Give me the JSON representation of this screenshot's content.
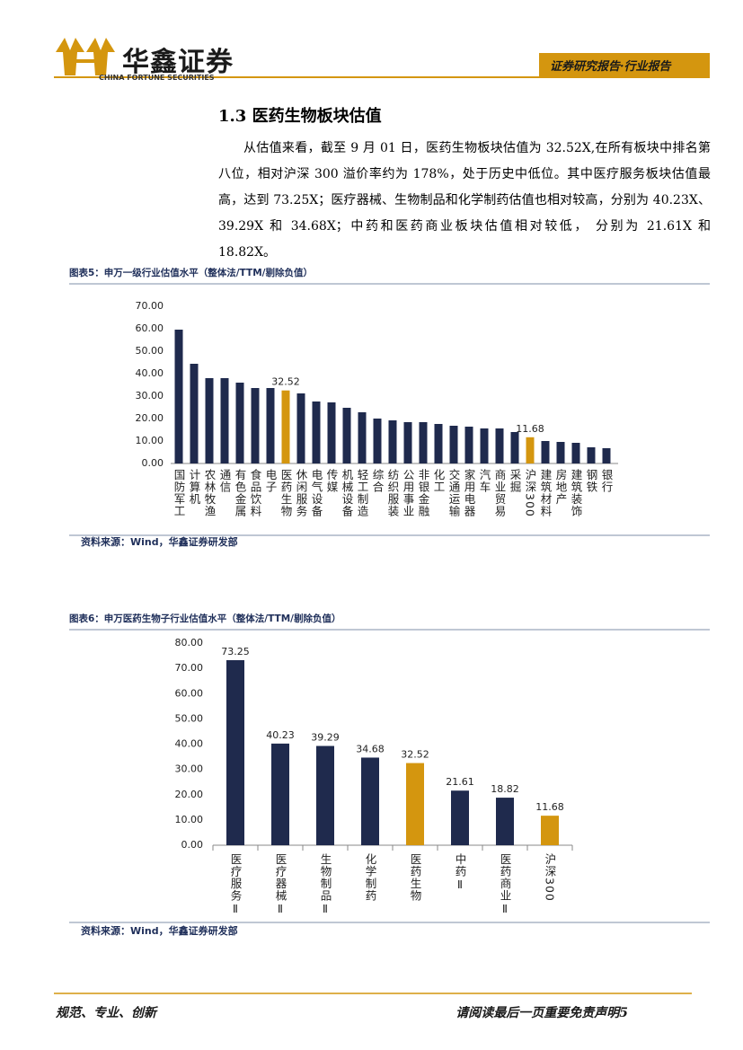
{
  "header": {
    "brand": "华鑫证券",
    "brand_en": "CHINA FORTUNE SECURITIES",
    "report_type": "证券研究报告·行业报告"
  },
  "section": {
    "title": "1.3 医药生物板块估值",
    "paragraph": "从估值来看，截至 9 月 01 日，医药生物板块估值为 32.52X,在所有板块中排名第八位，相对沪深 300 溢价率约为 178%，处于历史中低位。其中医疗服务板块估值最高，达到 73.25X；医疗器械、生物制品和化学制药估值也相对较高，分别为 40.23X、39.29X 和 34.68X；中药和医药商业板块估值相对较低， 分别为 21.61X 和 18.82X。"
  },
  "chart_data": [
    {
      "type": "bar",
      "title": "图表5：申万一级行业估值水平（整体法/TTM/剔除负值）",
      "source": "资料来源：Wind，华鑫证券研发部",
      "categories": [
        "国防军工",
        "计算机",
        "农林牧渔",
        "通信",
        "有色金属",
        "食品饮料",
        "电子",
        "医药生物",
        "休闲服务",
        "电气设备",
        "传媒",
        "机械设备",
        "轻工制造",
        "综合",
        "纺织服装",
        "公用事业",
        "非银金融",
        "化工",
        "交通运输",
        "家用电器",
        "汽车",
        "商业贸易",
        "采掘",
        "沪深300",
        "建筑材料",
        "房地产",
        "建筑装饰",
        "钢铁",
        "银行"
      ],
      "series": [
        {
          "color": "#1f2a4d",
          "show_values": false,
          "values": [
            59.6,
            44.4,
            38,
            38,
            36,
            33.6,
            33.6,
            null,
            31.2,
            27.6,
            27.2,
            24.8,
            22.8,
            20,
            19.2,
            18.4,
            18.4,
            17.6,
            16.8,
            16.4,
            15.6,
            15.6,
            14,
            null,
            10,
            9.6,
            9.2,
            7.2,
            6.8
          ]
        },
        {
          "color": "#d4960f",
          "show_values": true,
          "values": [
            null,
            null,
            null,
            null,
            null,
            null,
            null,
            32.52,
            null,
            null,
            null,
            null,
            null,
            null,
            null,
            null,
            null,
            null,
            null,
            null,
            null,
            null,
            null,
            11.68,
            null,
            null,
            null,
            null,
            null
          ]
        }
      ],
      "ylim": [
        0,
        70
      ],
      "yticks": [
        {
          "value": 0,
          "label": "0.00"
        },
        {
          "value": 10,
          "label": "10.00"
        },
        {
          "value": 20,
          "label": "20.00"
        },
        {
          "value": 30,
          "label": "30.00"
        },
        {
          "value": 40,
          "label": "40.00"
        },
        {
          "value": 50,
          "label": "50.00"
        },
        {
          "value": 60,
          "label": "60.00"
        },
        {
          "value": 70,
          "label": "70.00"
        }
      ],
      "grid": false
    },
    {
      "type": "bar",
      "title": "图表6：申万医药生物子行业估值水平（整体法/TTM/剔除负值）",
      "source": "资料来源：Wind，华鑫证券研发部",
      "categories": [
        "医疗服务Ⅱ",
        "医疗器械Ⅱ",
        "生物制品Ⅱ",
        "化学制药",
        "医药生物",
        "中药Ⅱ",
        "医药商业Ⅱ",
        "沪深300"
      ],
      "series": [
        {
          "color": "#1f2a4d",
          "show_values": true,
          "values": [
            73.25,
            40.23,
            39.29,
            34.68,
            null,
            21.61,
            18.82,
            null
          ]
        },
        {
          "color": "#d4960f",
          "show_values": true,
          "values": [
            null,
            null,
            null,
            null,
            32.52,
            null,
            null,
            11.68
          ]
        }
      ],
      "ylim": [
        0,
        80
      ],
      "yticks": [
        {
          "value": 0,
          "label": "0.00"
        },
        {
          "value": 10,
          "label": "10.00"
        },
        {
          "value": 20,
          "label": "20.00"
        },
        {
          "value": 30,
          "label": "30.00"
        },
        {
          "value": 40,
          "label": "40.00"
        },
        {
          "value": 50,
          "label": "50.00"
        },
        {
          "value": 60,
          "label": "60.00"
        },
        {
          "value": 70,
          "label": "70.00"
        },
        {
          "value": 80,
          "label": "80.00"
        }
      ],
      "grid": false
    }
  ],
  "footer": {
    "motto": "规范、专业、创新",
    "disclaimer": "请阅读最后一页重要免责声明5"
  }
}
